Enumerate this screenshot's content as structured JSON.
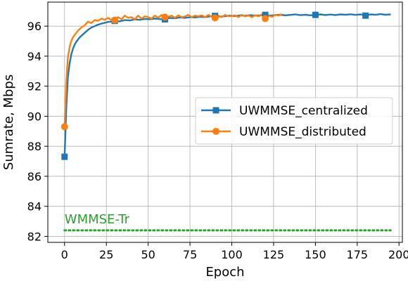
{
  "chart_data": {
    "type": "line",
    "title": "",
    "xlabel": "Epoch",
    "ylabel": "Sumrate, Mbps",
    "xlim": [
      -10,
      202
    ],
    "ylim": [
      81.6,
      97.6
    ],
    "xticks": [
      0,
      25,
      50,
      75,
      100,
      125,
      150,
      175,
      200
    ],
    "yticks": [
      82,
      84,
      86,
      88,
      90,
      92,
      94,
      96
    ],
    "grid": true,
    "legend_position": "center-right",
    "series": [
      {
        "name": "UWMMSE_centralized",
        "color": "#1f77b4",
        "marker": "square",
        "marker_every": 30,
        "x": [
          0,
          1,
          2,
          3,
          4,
          5,
          6,
          7,
          8,
          9,
          10,
          12,
          14,
          16,
          18,
          20,
          22,
          24,
          26,
          28,
          30,
          33,
          36,
          39,
          42,
          45,
          48,
          51,
          54,
          57,
          60,
          63,
          66,
          69,
          72,
          75,
          78,
          81,
          84,
          87,
          90,
          93,
          96,
          99,
          102,
          105,
          108,
          111,
          114,
          117,
          120,
          123,
          126,
          129,
          132,
          135,
          138,
          141,
          144,
          147,
          150,
          153,
          156,
          159,
          162,
          165,
          168,
          171,
          174,
          177,
          180,
          183,
          186,
          189,
          192,
          195
        ],
        "y": [
          87.3,
          90.5,
          92.6,
          93.5,
          94.1,
          94.5,
          94.75,
          94.95,
          95.1,
          95.25,
          95.35,
          95.55,
          95.75,
          95.9,
          96.0,
          96.1,
          96.17,
          96.22,
          96.28,
          96.3,
          96.35,
          96.32,
          96.4,
          96.38,
          96.45,
          96.42,
          96.48,
          96.46,
          96.5,
          96.47,
          96.45,
          96.55,
          96.52,
          96.58,
          96.55,
          96.6,
          96.58,
          96.62,
          96.6,
          96.65,
          96.68,
          96.63,
          96.66,
          96.7,
          96.66,
          96.72,
          96.69,
          96.73,
          96.7,
          96.72,
          96.75,
          96.7,
          96.74,
          96.76,
          96.72,
          96.75,
          96.78,
          96.73,
          96.76,
          96.72,
          96.75,
          96.78,
          96.74,
          96.77,
          96.74,
          96.78,
          96.76,
          96.79,
          96.75,
          96.78,
          96.7,
          96.78,
          96.76,
          96.8,
          96.76,
          96.78
        ]
      },
      {
        "name": "UWMMSE_distributed",
        "color": "#ff7f0e",
        "marker": "circle",
        "marker_every": 30,
        "x": [
          0,
          1,
          2,
          3,
          4,
          5,
          6,
          7,
          8,
          10,
          12,
          14,
          16,
          18,
          20,
          22,
          24,
          26,
          28,
          30,
          32,
          34,
          36,
          38,
          40,
          42,
          44,
          46,
          48,
          50,
          52,
          54,
          56,
          58,
          60,
          62,
          64,
          66,
          68,
          70,
          72,
          74,
          76,
          78,
          80,
          82,
          84,
          86,
          88,
          90,
          92,
          94,
          96,
          98,
          100,
          102,
          104,
          106,
          108,
          110,
          112,
          114,
          116,
          118,
          120,
          122,
          124,
          126,
          128,
          130
        ],
        "y": [
          89.3,
          92.3,
          93.9,
          94.6,
          95.0,
          95.25,
          95.4,
          95.55,
          95.7,
          95.9,
          96.05,
          96.3,
          96.2,
          96.4,
          96.35,
          96.5,
          96.42,
          96.55,
          96.4,
          96.4,
          96.6,
          96.45,
          96.7,
          96.55,
          96.6,
          96.45,
          96.7,
          96.5,
          96.65,
          96.6,
          96.5,
          96.7,
          96.55,
          96.75,
          96.6,
          96.62,
          96.7,
          96.55,
          96.72,
          96.6,
          96.65,
          96.75,
          96.6,
          96.7,
          96.65,
          96.72,
          96.6,
          96.75,
          96.62,
          96.55,
          96.7,
          96.6,
          96.75,
          96.65,
          96.68,
          96.72,
          96.6,
          96.75,
          96.65,
          96.7,
          96.6,
          96.72,
          96.65,
          96.78,
          96.5,
          96.7,
          96.62,
          96.75,
          96.7,
          96.8
        ]
      }
    ],
    "reference_line": {
      "label": "WMMSE-Tr",
      "value": 82.4,
      "color": "#2ca02c",
      "x_range": [
        0,
        195
      ],
      "style": "dotted"
    }
  }
}
